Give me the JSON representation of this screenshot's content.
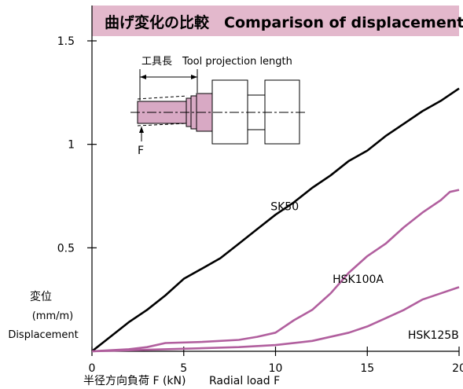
{
  "chart_data": {
    "type": "line",
    "title": "曲げ変化の比較　Comparison of displacement",
    "title_bg": "#e3b8cc",
    "xlabel_jp": "半径方向負荷 F (kN)",
    "xlabel_en": "Radial load F",
    "ylabel": [
      "変位",
      "(mm/m)",
      "Displacement"
    ],
    "xlim": [
      0,
      20
    ],
    "ylim": [
      0,
      1.5
    ],
    "xticks": [
      0,
      5,
      10,
      15,
      20
    ],
    "yticks": [
      0.5,
      1,
      1.5
    ],
    "ytick_labels": [
      "0.5",
      "1",
      "1.5"
    ],
    "grid": false,
    "series": [
      {
        "name": "SK50",
        "color": "#000000",
        "x": [
          0,
          1,
          2,
          3,
          4,
          5,
          6,
          7,
          8,
          9,
          10,
          11,
          12,
          13,
          14,
          15,
          16,
          17,
          18,
          19,
          20
        ],
        "y": [
          0,
          0.07,
          0.14,
          0.2,
          0.27,
          0.35,
          0.4,
          0.45,
          0.52,
          0.59,
          0.66,
          0.72,
          0.79,
          0.85,
          0.92,
          0.97,
          1.04,
          1.1,
          1.16,
          1.21,
          1.27
        ]
      },
      {
        "name": "HSK100A",
        "color": "#b15f9e",
        "x": [
          0,
          2,
          3,
          4,
          6,
          8,
          9,
          10,
          11,
          12,
          13,
          14,
          15,
          16,
          17,
          18,
          19,
          19.5,
          20
        ],
        "y": [
          0,
          0.01,
          0.02,
          0.04,
          0.045,
          0.055,
          0.07,
          0.09,
          0.15,
          0.2,
          0.28,
          0.38,
          0.46,
          0.52,
          0.6,
          0.67,
          0.73,
          0.77,
          0.78
        ]
      },
      {
        "name": "HSK125B",
        "color": "#b15f9e",
        "x": [
          0,
          2,
          4,
          6,
          8,
          10,
          12,
          14,
          15,
          16,
          17,
          18,
          19,
          20
        ],
        "y": [
          0,
          0.005,
          0.01,
          0.015,
          0.02,
          0.03,
          0.05,
          0.09,
          0.12,
          0.16,
          0.2,
          0.25,
          0.28,
          0.31
        ]
      }
    ],
    "series_label_pos": [
      {
        "x": 10.5,
        "y": 0.7
      },
      {
        "x": 14.5,
        "y": 0.35
      },
      {
        "x": 18.6,
        "y": 0.08
      }
    ],
    "inset": {
      "label": "工具長　Tool projection length",
      "force_label": "F"
    }
  }
}
